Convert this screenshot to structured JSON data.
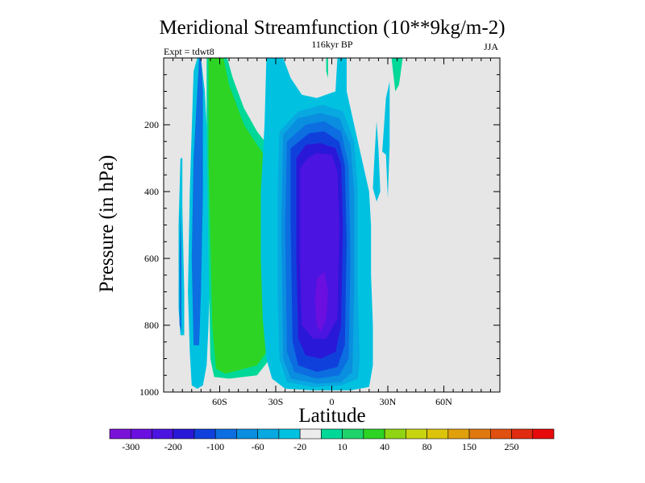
{
  "chart_data": {
    "type": "contour",
    "title": "Meridional Streamfunction (10**9kg/m-2)",
    "left_label": "Expt = tdwt8",
    "center_label": "116kyr BP",
    "right_label": "JJA",
    "xlabel": "Latitude",
    "ylabel": "Pressure (in hPa)",
    "xlim": [
      -90,
      90
    ],
    "ylim": [
      1000,
      0
    ],
    "x_ticks": [
      {
        "value": -60,
        "label": "60S"
      },
      {
        "value": -30,
        "label": "30S"
      },
      {
        "value": 0,
        "label": "0"
      },
      {
        "value": 30,
        "label": "30N"
      },
      {
        "value": 60,
        "label": "60N"
      }
    ],
    "y_ticks": [
      {
        "value": 200,
        "label": "200"
      },
      {
        "value": 400,
        "label": "400"
      },
      {
        "value": 600,
        "label": "600"
      },
      {
        "value": 800,
        "label": "800"
      },
      {
        "value": 1000,
        "label": "1000"
      }
    ],
    "background_color": "#e6e6e6",
    "colorbar": {
      "labels": [
        "-300",
        "-200",
        "-100",
        "-60",
        "-20",
        "10",
        "40",
        "80",
        "150",
        "250"
      ],
      "colors": [
        "#7b12d8",
        "#6a0fe0",
        "#4c14e0",
        "#2a18d8",
        "#1040dc",
        "#0c6ee0",
        "#0a8ee0",
        "#08a8e0",
        "#00c2e0",
        "#ececec",
        "#00d898",
        "#1ed46a",
        "#2ed424",
        "#90d414",
        "#c8d410",
        "#dcc40c",
        "#e0a00c",
        "#e07810",
        "#e05010",
        "#e02c10",
        "#e60a0a"
      ]
    },
    "regions": [
      {
        "name": "outer-cyan",
        "color": "#00c2e0",
        "points": [
          [
            -75,
            980
          ],
          [
            -76,
            880
          ],
          [
            -77,
            700
          ],
          [
            -76,
            400
          ],
          [
            -74,
            40
          ],
          [
            -72,
            0
          ],
          [
            -70,
            0
          ],
          [
            -68,
            100
          ],
          [
            -66,
            300
          ],
          [
            -65,
            600
          ],
          [
            -66,
            800
          ],
          [
            -67,
            920
          ],
          [
            -69,
            980
          ],
          [
            -72,
            990
          ]
        ]
      },
      {
        "name": "outer-blue",
        "color": "#0c6ee0",
        "points": [
          [
            -74,
            860
          ],
          [
            -75,
            600
          ],
          [
            -74,
            300
          ],
          [
            -72,
            100
          ],
          [
            -71,
            0
          ],
          [
            -70,
            0
          ],
          [
            -69,
            100
          ],
          [
            -69,
            400
          ],
          [
            -70,
            700
          ],
          [
            -71,
            860
          ]
        ]
      },
      {
        "name": "west-cyan",
        "color": "#00c2e0",
        "points": [
          [
            -79,
            830
          ],
          [
            -79,
            700
          ],
          [
            -80,
            450
          ],
          [
            -80,
            300
          ],
          [
            -81,
            300
          ],
          [
            -82,
            500
          ],
          [
            -82,
            750
          ],
          [
            -81,
            830
          ]
        ]
      },
      {
        "name": "west-blue",
        "color": "#0c6ee0",
        "points": [
          [
            -80.5,
            820
          ],
          [
            -80.5,
            600
          ],
          [
            -81,
            450
          ],
          [
            -81.5,
            600
          ],
          [
            -81.5,
            800
          ]
        ]
      },
      {
        "name": "sh-green-halo",
        "color": "#00d898",
        "points": [
          [
            -67,
            0
          ],
          [
            -67,
            200
          ],
          [
            -66,
            600
          ],
          [
            -65,
            900
          ],
          [
            -63,
            955
          ],
          [
            -55,
            960
          ],
          [
            -40,
            950
          ],
          [
            -33,
            900
          ],
          [
            -31,
            600
          ],
          [
            -31,
            350
          ],
          [
            -33,
            270
          ],
          [
            -40,
            220
          ],
          [
            -47,
            150
          ],
          [
            -53,
            60
          ],
          [
            -56,
            0
          ]
        ]
      },
      {
        "name": "sh-green",
        "color": "#2ed424",
        "points": [
          [
            -66,
            0
          ],
          [
            -66,
            300
          ],
          [
            -64,
            800
          ],
          [
            -62,
            930
          ],
          [
            -57,
            945
          ],
          [
            -50,
            935
          ],
          [
            -40,
            920
          ],
          [
            -35,
            880
          ],
          [
            -33,
            700
          ],
          [
            -33,
            400
          ],
          [
            -35,
            300
          ],
          [
            -40,
            260
          ],
          [
            -47,
            200
          ],
          [
            -55,
            80
          ],
          [
            -58,
            0
          ]
        ]
      },
      {
        "name": "ne-green",
        "color": "#00d898",
        "points": [
          [
            32,
            0
          ],
          [
            33,
            50
          ],
          [
            34,
            100
          ],
          [
            36,
            80
          ],
          [
            37,
            40
          ],
          [
            38,
            0
          ]
        ]
      },
      {
        "name": "ne-cyan-1",
        "color": "#00c2e0",
        "points": [
          [
            27,
            280
          ],
          [
            29,
            120
          ],
          [
            31,
            70
          ],
          [
            31,
            260
          ],
          [
            30,
            420
          ],
          [
            29,
            290
          ]
        ]
      },
      {
        "name": "ne-cyan-2",
        "color": "#00c2e0",
        "points": [
          [
            22,
            390
          ],
          [
            23,
            280
          ],
          [
            24,
            190
          ],
          [
            25,
            270
          ],
          [
            26,
            400
          ],
          [
            24,
            430
          ]
        ]
      },
      {
        "name": "cell-cyan",
        "color": "#00c2e0",
        "points": [
          [
            -35,
            0
          ],
          [
            -36,
            200
          ],
          [
            -38,
            400
          ],
          [
            -38,
            600
          ],
          [
            -37,
            780
          ],
          [
            -35,
            900
          ],
          [
            -32,
            960
          ],
          [
            -25,
            990
          ],
          [
            -10,
            995
          ],
          [
            0,
            995
          ],
          [
            10,
            995
          ],
          [
            20,
            985
          ],
          [
            22,
            920
          ],
          [
            22,
            800
          ],
          [
            21,
            650
          ],
          [
            21,
            500
          ],
          [
            20,
            400
          ],
          [
            14,
            250
          ],
          [
            8,
            100
          ],
          [
            8,
            0
          ],
          [
            3,
            0
          ],
          [
            2,
            100
          ],
          [
            -8,
            120
          ],
          [
            -16,
            110
          ],
          [
            -22,
            60
          ],
          [
            -26,
            0
          ]
        ]
      },
      {
        "name": "cell-lightblue",
        "color": "#08a8e0",
        "points": [
          [
            -28,
            220
          ],
          [
            -29,
            400
          ],
          [
            -29,
            700
          ],
          [
            -28,
            900
          ],
          [
            -24,
            970
          ],
          [
            -10,
            985
          ],
          [
            5,
            980
          ],
          [
            14,
            960
          ],
          [
            15,
            900
          ],
          [
            14,
            700
          ],
          [
            14,
            400
          ],
          [
            12,
            250
          ],
          [
            6,
            160
          ],
          [
            -5,
            140
          ],
          [
            -18,
            160
          ]
        ]
      },
      {
        "name": "cell-blue",
        "color": "#0a8ee0",
        "points": [
          [
            -26,
            230
          ],
          [
            -27,
            500
          ],
          [
            -26,
            900
          ],
          [
            -22,
            960
          ],
          [
            -8,
            975
          ],
          [
            5,
            970
          ],
          [
            11,
            940
          ],
          [
            12,
            700
          ],
          [
            12,
            400
          ],
          [
            10,
            260
          ],
          [
            4,
            180
          ],
          [
            -6,
            165
          ],
          [
            -18,
            180
          ]
        ]
      },
      {
        "name": "cell-medblue",
        "color": "#0c6ee0",
        "points": [
          [
            -24,
            250
          ],
          [
            -25,
            500
          ],
          [
            -24,
            880
          ],
          [
            -20,
            940
          ],
          [
            -8,
            960
          ],
          [
            4,
            950
          ],
          [
            9,
            900
          ],
          [
            10,
            600
          ],
          [
            9,
            320
          ],
          [
            5,
            220
          ],
          [
            -4,
            190
          ],
          [
            -14,
            200
          ]
        ]
      },
      {
        "name": "cell-blue2",
        "color": "#1040dc",
        "points": [
          [
            -22,
            270
          ],
          [
            -22,
            500
          ],
          [
            -21,
            850
          ],
          [
            -18,
            920
          ],
          [
            -8,
            940
          ],
          [
            3,
            925
          ],
          [
            7,
            860
          ],
          [
            8,
            550
          ],
          [
            7,
            320
          ],
          [
            4,
            250
          ],
          [
            -4,
            220
          ],
          [
            -12,
            225
          ]
        ]
      },
      {
        "name": "cell-darkblue",
        "color": "#2a18d8",
        "points": [
          [
            -19,
            300
          ],
          [
            -19,
            600
          ],
          [
            -18,
            840
          ],
          [
            -14,
            890
          ],
          [
            -6,
            900
          ],
          [
            2,
            880
          ],
          [
            5,
            800
          ],
          [
            6,
            500
          ],
          [
            5,
            320
          ],
          [
            2,
            270
          ],
          [
            -6,
            255
          ],
          [
            -14,
            260
          ]
        ]
      },
      {
        "name": "cell-indigo",
        "color": "#4c14e0",
        "points": [
          [
            -17,
            330
          ],
          [
            -17,
            600
          ],
          [
            -16,
            800
          ],
          [
            -10,
            840
          ],
          [
            -3,
            840
          ],
          [
            3,
            780
          ],
          [
            4,
            500
          ],
          [
            3,
            340
          ],
          [
            0,
            290
          ],
          [
            -8,
            285
          ],
          [
            -13,
            300
          ]
        ]
      },
      {
        "name": "cell-purple",
        "color": "#6a0fe0",
        "points": [
          [
            -8,
            660
          ],
          [
            -9,
            730
          ],
          [
            -8,
            800
          ],
          [
            -6,
            820
          ],
          [
            -3,
            780
          ],
          [
            -2,
            700
          ],
          [
            -4,
            640
          ]
        ]
      },
      {
        "name": "eq-green",
        "color": "#00d898",
        "points": [
          [
            -3,
            0
          ],
          [
            -3,
            40
          ],
          [
            -2,
            60
          ],
          [
            -2,
            0
          ]
        ]
      }
    ]
  }
}
